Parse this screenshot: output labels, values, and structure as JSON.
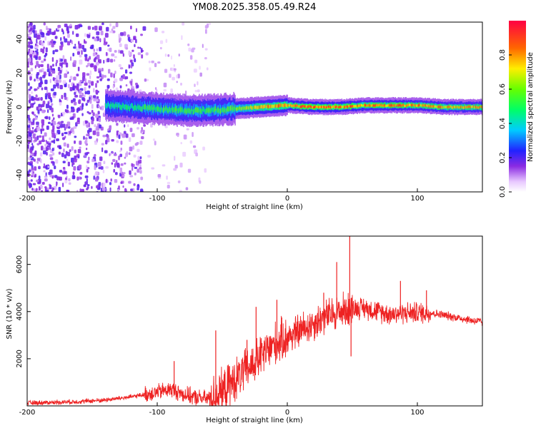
{
  "title": "YM08.2025.358.05.49.R24",
  "chart_data": [
    {
      "type": "heatmap",
      "xlabel": "Height of straight line (km)",
      "ylabel": "Frequency (Hz)",
      "xlim": [
        -200,
        150
      ],
      "ylim": [
        -50,
        50
      ],
      "xticks": [
        -200,
        -100,
        0,
        100
      ],
      "xtick_labels": [
        "-200",
        "-100",
        "0",
        "100"
      ],
      "yticks": [
        -40,
        -20,
        0,
        20,
        40
      ],
      "ytick_labels": [
        "-40",
        "-20",
        "0",
        "20",
        "40"
      ],
      "ridge": [
        {
          "x": -140,
          "f": 1,
          "amp": 0.45
        },
        {
          "x": -120,
          "f": 0,
          "amp": 0.5
        },
        {
          "x": -100,
          "f": -1,
          "amp": 0.55
        },
        {
          "x": -80,
          "f": -2,
          "amp": 0.55
        },
        {
          "x": -60,
          "f": -2,
          "amp": 0.55
        },
        {
          "x": -40,
          "f": -1,
          "amp": 0.6
        },
        {
          "x": -20,
          "f": 0,
          "amp": 0.8
        },
        {
          "x": 0,
          "f": 1,
          "amp": 0.85
        },
        {
          "x": 20,
          "f": 0,
          "amp": 0.9
        },
        {
          "x": 40,
          "f": 0,
          "amp": 0.9
        },
        {
          "x": 60,
          "f": 1,
          "amp": 0.85
        },
        {
          "x": 80,
          "f": 1,
          "amp": 0.88
        },
        {
          "x": 100,
          "f": 1,
          "amp": 0.88
        },
        {
          "x": 120,
          "f": 0,
          "amp": 0.85
        },
        {
          "x": 150,
          "f": 0,
          "amp": 0.82
        }
      ],
      "noise_region": {
        "x_min": -200,
        "x_max": -60,
        "dense_until": -110
      }
    },
    {
      "type": "line",
      "xlabel": "Height of straight line (km)",
      "ylabel": "SNR (10 * v/v)",
      "xlim": [
        -200,
        150
      ],
      "ylim": [
        0,
        7200
      ],
      "xticks": [
        -200,
        -100,
        0,
        100
      ],
      "xtick_labels": [
        "-200",
        "-100",
        "0",
        "100"
      ],
      "yticks": [
        2000,
        4000,
        6000
      ],
      "ytick_labels": [
        "2000",
        "4000",
        "6000"
      ],
      "color": "#ee2222",
      "series": [
        {
          "name": "SNR",
          "x": [
            -200,
            -180,
            -160,
            -140,
            -120,
            -110,
            -100,
            -90,
            -80,
            -70,
            -60,
            -50,
            -40,
            -30,
            -20,
            -10,
            0,
            10,
            20,
            30,
            40,
            50,
            60,
            70,
            80,
            90,
            100,
            110,
            120,
            130,
            140,
            150
          ],
          "y": [
            120,
            150,
            180,
            250,
            380,
            480,
            580,
            700,
            500,
            350,
            300,
            600,
            1100,
            1600,
            2100,
            2600,
            2900,
            3200,
            3500,
            3800,
            4000,
            4150,
            4150,
            4000,
            3900,
            3950,
            3950,
            3950,
            3850,
            3750,
            3650,
            3550
          ],
          "spikes": [
            {
              "x": -87,
              "y": 1900
            },
            {
              "x": -55,
              "y": 3200
            },
            {
              "x": -31,
              "y": 2800
            },
            {
              "x": -24,
              "y": 4200
            },
            {
              "x": -8,
              "y": 4500
            },
            {
              "x": 28,
              "y": 4800
            },
            {
              "x": 38,
              "y": 6100
            },
            {
              "x": 48,
              "y": 7200
            },
            {
              "x": 49,
              "y": 2100
            },
            {
              "x": 87,
              "y": 5300
            },
            {
              "x": 107,
              "y": 4900
            }
          ]
        }
      ]
    }
  ],
  "colorbar": {
    "label": "Normalized spectral amplitude",
    "range": [
      0,
      1
    ],
    "ticks": [
      0,
      0.2,
      0.4,
      0.6,
      0.8
    ],
    "tick_labels": [
      "0.0",
      "0.2",
      "0.4",
      "0.6",
      "0.8"
    ]
  }
}
